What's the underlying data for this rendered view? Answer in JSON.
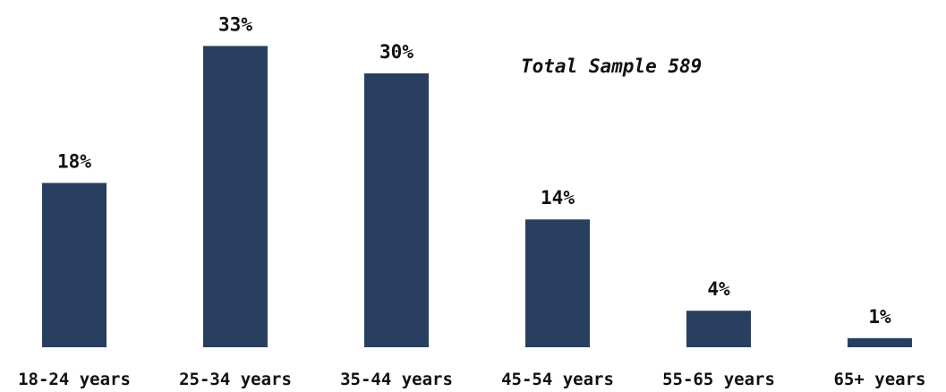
{
  "chart_data": {
    "type": "bar",
    "categories": [
      "18-24 years",
      "25-34 years",
      "35-44 years",
      "45-54 years",
      "55-65 years",
      "65+ years"
    ],
    "values": [
      18,
      33,
      30,
      14,
      4,
      1
    ],
    "data_labels": [
      "18%",
      "33%",
      "30%",
      "14%",
      "4%",
      "1%"
    ],
    "annotation": "Total Sample 589",
    "value_unit": "%",
    "bar_color": "#283F60",
    "ylim": [
      0,
      33
    ],
    "grid": false
  }
}
